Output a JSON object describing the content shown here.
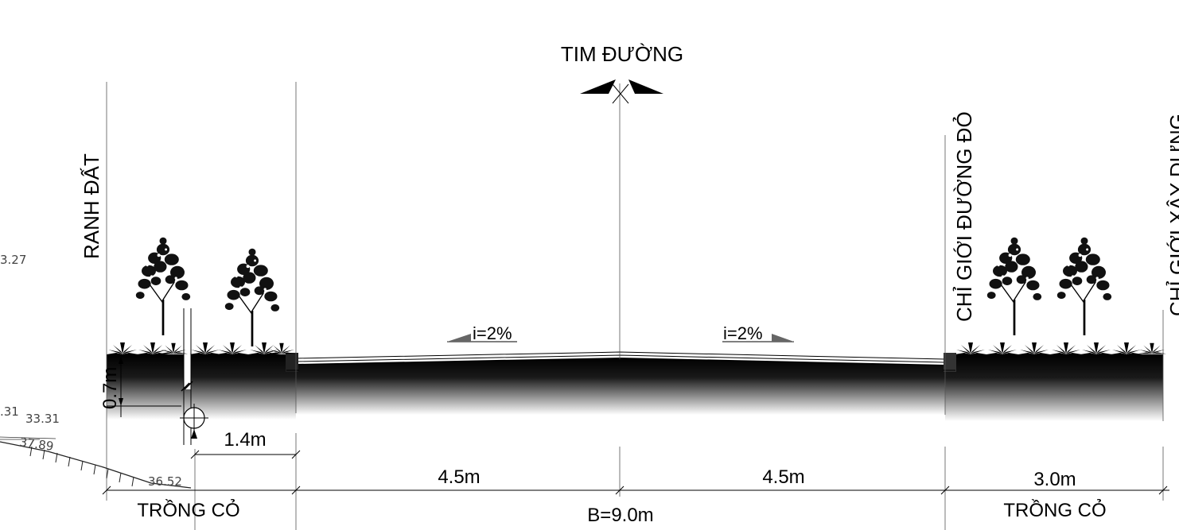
{
  "labels": {
    "centerline": "TIM ĐƯỜNG",
    "land_boundary": "RANH ĐẤT",
    "red_line": "CHỈ GIỚI ĐƯỜNG ĐỎ",
    "build_line": "CHỈ GIỚI XÂY DỰNG"
  },
  "slopes": {
    "left": "i=2%",
    "right": "i=2%"
  },
  "dimensions": {
    "depth": "0.7m",
    "pipe_offset": "1.4m",
    "lane_left": "4.5m",
    "lane_right": "4.5m",
    "verge_right": "3.0m",
    "total_width": "B=9.0m"
  },
  "zones": {
    "left": "TRỒNG CỎ",
    "right": "TRỒNG CỎ"
  },
  "levels": {
    "l1": "3.27",
    "l2": ".31",
    "l3": "33.31",
    "l4": "37.89",
    "l5": "36.52"
  }
}
